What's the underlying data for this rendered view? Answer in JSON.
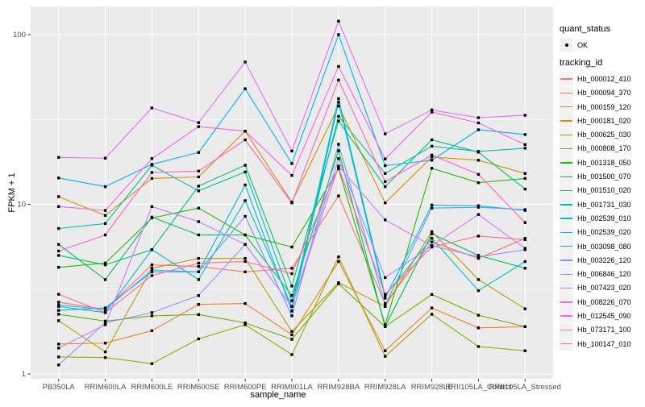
{
  "figure": {
    "y_axis_title": "FPKM + 1",
    "x_axis_title": "sample_name",
    "legend": {
      "quant_title": "quant_status",
      "quant_item_label": "OK",
      "tracking_title": "tracking_id"
    }
  },
  "chart_data": {
    "type": "line",
    "title": "",
    "xlabel": "sample_name",
    "ylabel": "FPKM + 1",
    "y_scale": "log10",
    "ylim": [
      0.94,
      146
    ],
    "y_major_ticks": [
      1,
      10,
      100
    ],
    "y_minor_ticks": [
      3.162,
      31.623
    ],
    "grid": true,
    "panel_bg": "#EBEBEB",
    "grid_color": "#FFFFFF",
    "tick_text_color": "#4D4D4D",
    "marker": "black-square",
    "quant_status": "OK",
    "legend_position": "right",
    "categories": [
      "PB350LA",
      "RRIM600LA",
      "RRIM600LE",
      "RRIM600SE",
      "RRIM600PE",
      "RRIM901LA",
      "RRIM928BA",
      "RRIM928LA",
      "RRIM928LE",
      "RRII105LA_Control",
      "RRII105LA_Stressed"
    ],
    "series": [
      {
        "name": "Hb_000012_410",
        "color": "#F8766D",
        "values": [
          2.65,
          2.4,
          4.4,
          4.3,
          4.0,
          4.2,
          11.2,
          2.6,
          6.0,
          4.8,
          6.3
        ]
      },
      {
        "name": "Hb_000094_370",
        "color": "#EA8331",
        "values": [
          1.5,
          1.52,
          1.8,
          2.57,
          2.6,
          1.7,
          4.6,
          1.37,
          2.45,
          1.87,
          1.9
        ]
      },
      {
        "name": "Hb_000159_120",
        "color": "#D59100",
        "values": [
          11.1,
          8.6,
          14.2,
          14.5,
          27.0,
          10.3,
          38.0,
          10.2,
          19.0,
          18.2,
          15.2
        ]
      },
      {
        "name": "Hb_000181_020",
        "color": "#BC9D00",
        "values": [
          2.06,
          1.35,
          4.2,
          4.8,
          4.8,
          1.78,
          3.45,
          2.5,
          6.9,
          3.6,
          2.42
        ]
      },
      {
        "name": "Hb_000625_030",
        "color": "#9CA700",
        "values": [
          1.26,
          1.25,
          1.15,
          1.61,
          1.95,
          1.3,
          4.9,
          1.27,
          2.25,
          1.45,
          1.37
        ]
      },
      {
        "name": "Hb_000808_170",
        "color": "#6BB100",
        "values": [
          2.25,
          2.05,
          2.2,
          2.24,
          2.0,
          1.6,
          3.4,
          1.9,
          2.94,
          2.22,
          1.9
        ]
      },
      {
        "name": "Hb_001318_050",
        "color": "#26B700",
        "values": [
          4.25,
          4.5,
          8.3,
          9.5,
          6.6,
          5.6,
          16.2,
          1.95,
          16.3,
          13.4,
          14.2
        ]
      },
      {
        "name": "Hb_001500_070",
        "color": "#00BC51",
        "values": [
          5.8,
          3.6,
          8.4,
          6.6,
          6.6,
          2.9,
          20.7,
          1.9,
          6.7,
          5.0,
          4.2
        ]
      },
      {
        "name": "Hb_001510_020",
        "color": "#00C078",
        "values": [
          5.0,
          4.4,
          5.4,
          12.8,
          17.0,
          3.3,
          31.0,
          12.7,
          24.0,
          20.3,
          12.3
        ]
      },
      {
        "name": "Hb_001731_030",
        "color": "#00C19F",
        "values": [
          7.2,
          7.7,
          17.0,
          12.0,
          15.5,
          2.7,
          33.0,
          15.2,
          22.0,
          20.5,
          21.4
        ]
      },
      {
        "name": "Hb_002539_010",
        "color": "#00BFC4",
        "values": [
          2.5,
          2.3,
          5.4,
          3.6,
          10.5,
          2.5,
          42.0,
          2.9,
          6.3,
          3.1,
          4.6
        ]
      },
      {
        "name": "Hb_002539_020",
        "color": "#00B9E3",
        "values": [
          2.37,
          2.45,
          4.0,
          4.0,
          13.0,
          2.35,
          40.0,
          2.8,
          9.9,
          9.8,
          9.2
        ]
      },
      {
        "name": "Hb_003098_080",
        "color": "#00AFF8",
        "values": [
          14.3,
          12.7,
          17.2,
          20.2,
          48.0,
          17.4,
          100.0,
          16.9,
          18.2,
          27.5,
          25.8
        ]
      },
      {
        "name": "Hb_003226_120",
        "color": "#5F9DFF",
        "values": [
          2.55,
          2.4,
          4.1,
          4.0,
          8.5,
          2.2,
          22.6,
          2.55,
          9.5,
          9.6,
          9.3
        ]
      },
      {
        "name": "Hb_006846_120",
        "color": "#9E8CFF",
        "values": [
          1.13,
          2.0,
          2.3,
          2.9,
          5.8,
          2.5,
          18.6,
          3.7,
          5.7,
          4.9,
          5.4
        ]
      },
      {
        "name": "Hb_007423_020",
        "color": "#C77CFF",
        "values": [
          1.42,
          1.95,
          9.7,
          7.9,
          5.8,
          2.5,
          16.8,
          8.1,
          5.7,
          8.7,
          5.5
        ]
      },
      {
        "name": "Hb_008226_070",
        "color": "#E56DF5",
        "values": [
          18.9,
          18.7,
          37.0,
          30.3,
          69.0,
          20.6,
          120.0,
          26.0,
          36.0,
          32.4,
          33.5
        ]
      },
      {
        "name": "Hb_012545_090",
        "color": "#F464E5",
        "values": [
          9.7,
          9.2,
          18.6,
          28.7,
          27.0,
          14.8,
          65.0,
          18.5,
          35.0,
          30.2,
          22.5
        ]
      },
      {
        "name": "Hb_073171_100",
        "color": "#FF62C1",
        "values": [
          5.3,
          6.6,
          15.4,
          15.7,
          24.0,
          10.2,
          54.0,
          13.6,
          19.5,
          15.0,
          7.8
        ]
      },
      {
        "name": "Hb_100147_010",
        "color": "#FF689E",
        "values": [
          2.95,
          2.3,
          3.8,
          4.5,
          4.6,
          3.9,
          16.5,
          2.95,
          5.6,
          6.5,
          6.2
        ]
      }
    ]
  }
}
